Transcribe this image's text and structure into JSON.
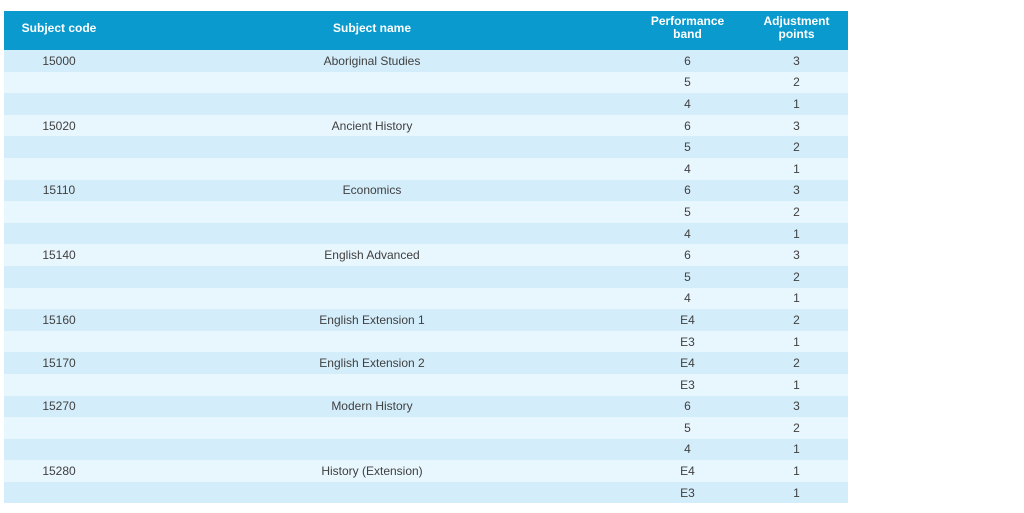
{
  "table": {
    "columns": [
      {
        "key": "code",
        "label": "Subject code"
      },
      {
        "key": "name",
        "label": "Subject name"
      },
      {
        "key": "band",
        "label": "Performance band"
      },
      {
        "key": "points",
        "label": "Adjustment points"
      }
    ],
    "rows": [
      {
        "code": "15000",
        "name": "Aboriginal Studies",
        "band": "6",
        "points": "3"
      },
      {
        "code": "",
        "name": "",
        "band": "5",
        "points": "2"
      },
      {
        "code": "",
        "name": "",
        "band": "4",
        "points": "1"
      },
      {
        "code": "15020",
        "name": "Ancient History",
        "band": "6",
        "points": "3"
      },
      {
        "code": "",
        "name": "",
        "band": "5",
        "points": "2"
      },
      {
        "code": "",
        "name": "",
        "band": "4",
        "points": "1"
      },
      {
        "code": "15110",
        "name": "Economics",
        "band": "6",
        "points": "3"
      },
      {
        "code": "",
        "name": "",
        "band": "5",
        "points": "2"
      },
      {
        "code": "",
        "name": "",
        "band": "4",
        "points": "1"
      },
      {
        "code": "15140",
        "name": "English Advanced",
        "band": "6",
        "points": "3"
      },
      {
        "code": "",
        "name": "",
        "band": "5",
        "points": "2"
      },
      {
        "code": "",
        "name": "",
        "band": "4",
        "points": "1"
      },
      {
        "code": "15160",
        "name": "English Extension 1",
        "band": "E4",
        "points": "2"
      },
      {
        "code": "",
        "name": "",
        "band": "E3",
        "points": "1"
      },
      {
        "code": "15170",
        "name": "English Extension 2",
        "band": "E4",
        "points": "2"
      },
      {
        "code": "",
        "name": "",
        "band": "E3",
        "points": "1"
      },
      {
        "code": "15270",
        "name": "Modern History",
        "band": "6",
        "points": "3"
      },
      {
        "code": "",
        "name": "",
        "band": "5",
        "points": "2"
      },
      {
        "code": "",
        "name": "",
        "band": "4",
        "points": "1"
      },
      {
        "code": "15280",
        "name": "History (Extension)",
        "band": "E4",
        "points": "1"
      },
      {
        "code": "",
        "name": "",
        "band": "E3",
        "points": "1"
      }
    ],
    "colors": {
      "header_bg": "#0a9acd",
      "header_text": "#ffffff",
      "row_odd": "#d4edfa",
      "row_even": "#e8f6fd",
      "cell_text": "#404040"
    }
  }
}
